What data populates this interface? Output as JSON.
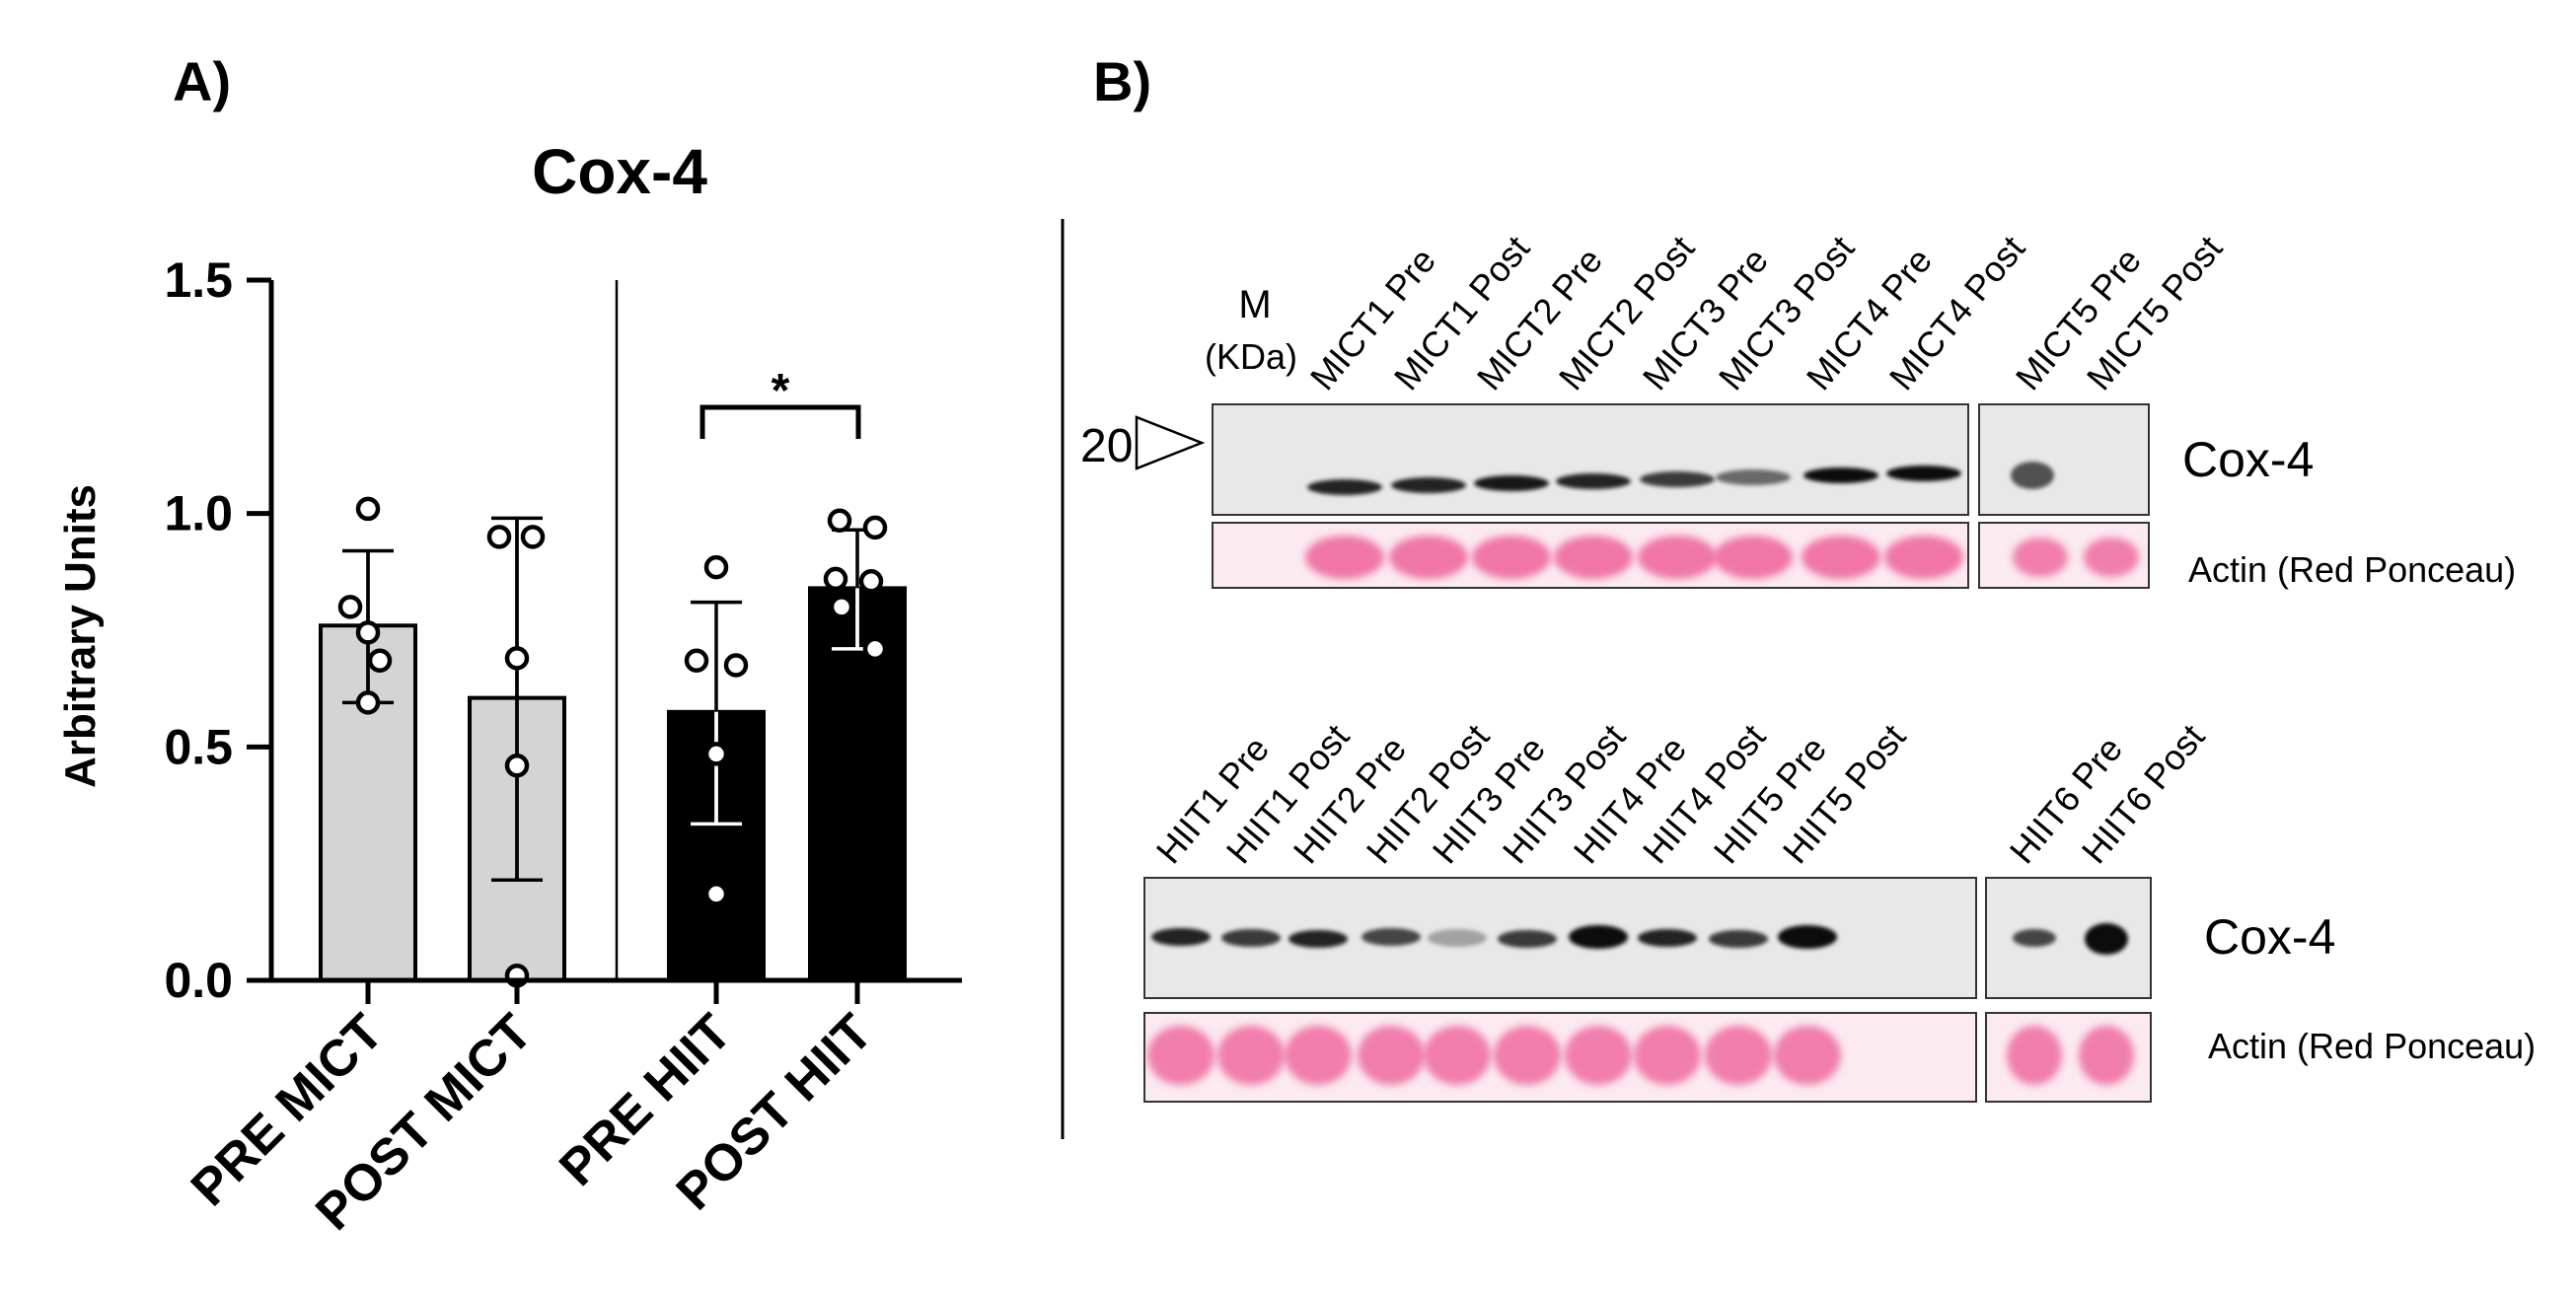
{
  "panel_a": {
    "label": "A)",
    "chart_data": {
      "type": "bar",
      "title": "Cox-4",
      "xlabel": "",
      "ylabel": "Arbitrary Units",
      "ylim": [
        0,
        1.5
      ],
      "yticks": [
        "0.0",
        "0.5",
        "1.0",
        "1.5"
      ],
      "categories": [
        "PRE MICT",
        "POST MICT",
        "PRE HIIT",
        "POST HIIT"
      ],
      "values": [
        0.76,
        0.605,
        0.575,
        0.84
      ],
      "sd_low": [
        0.595,
        0.215,
        0.335,
        0.71
      ],
      "sd_high": [
        0.92,
        0.99,
        0.81,
        0.965
      ],
      "points": [
        [
          1.01,
          0.8,
          0.745,
          0.685,
          0.595
        ],
        [
          0.95,
          0.95,
          0.69,
          0.46,
          0.01
        ],
        [
          0.885,
          0.685,
          0.675,
          0.485,
          0.185
        ],
        [
          0.985,
          0.97,
          0.86,
          0.855,
          0.8,
          0.71
        ]
      ],
      "bar_colors": [
        "#d4d4d4",
        "#d4d4d4",
        "#000000",
        "#000000"
      ],
      "significance": {
        "from": "PRE HIIT",
        "to": "POST HIIT",
        "label": "*"
      },
      "grid": false,
      "legend": "none"
    }
  },
  "panel_b": {
    "label": "B)",
    "marker": {
      "label": "M",
      "unit": "(KDa)",
      "size": "20"
    },
    "mict_blot": {
      "lanes": [
        "MICT1 Pre",
        "MICT1 Post",
        "MICT2 Pre",
        "MICT2 Post",
        "MICT3 Pre",
        "MICT3 Post",
        "MICT4 Pre",
        "MICT4 Post",
        "MICT5 Pre",
        "MICT5 Post"
      ],
      "band_label": "Cox-4",
      "loading_label": "Actin (Red Ponceau)"
    },
    "hiit_blot": {
      "lanes": [
        "HIIT1 Pre",
        "HIIT1 Post",
        "HIIT2 Pre",
        "HIIT2 Post",
        "HIIT3 Pre",
        "HIIT3 Post",
        "HIIT4 Pre",
        "HIIT4 Post",
        "HIIT5 Pre",
        "HIIT5 Post",
        "HIIT6 Pre",
        "HIIT6 Post"
      ],
      "band_label": "Cox-4",
      "loading_label": "Actin (Red Ponceau)"
    }
  }
}
